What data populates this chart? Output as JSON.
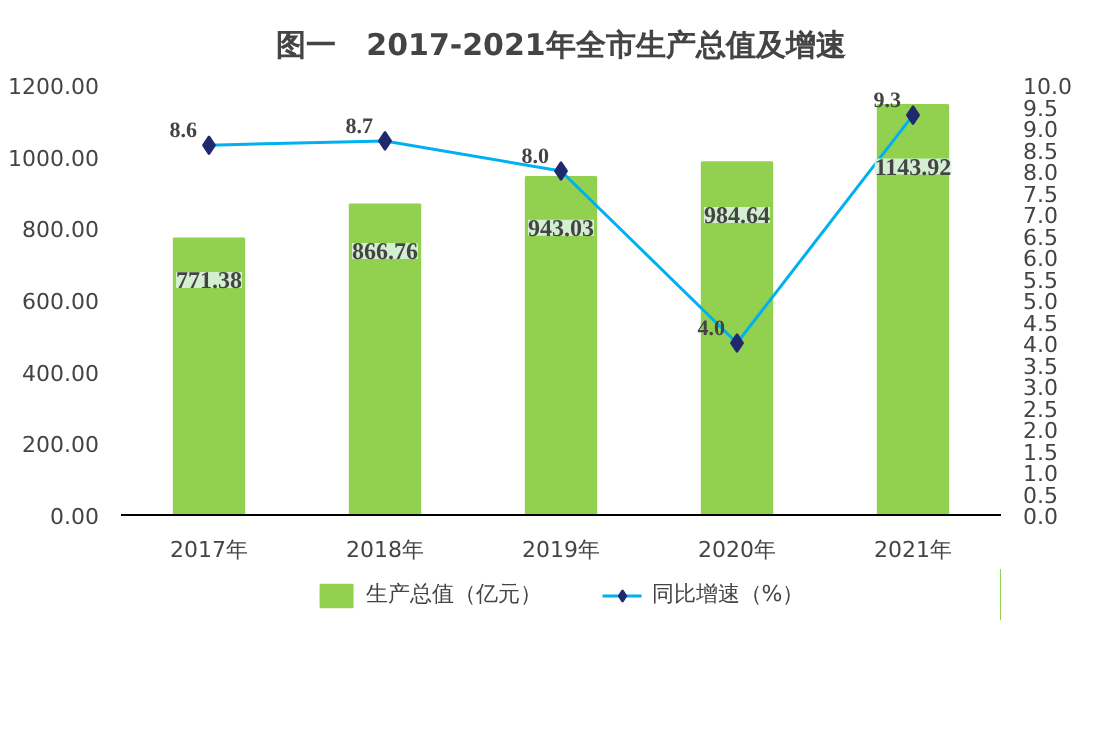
{
  "chart_data": {
    "type": "bar",
    "title": "图一　2017-2021年全市生产总值及增速",
    "categories": [
      "2017年",
      "2018年",
      "2019年",
      "2020年",
      "2021年"
    ],
    "series": [
      {
        "name": "生产总值（亿元）",
        "color": "#92d050",
        "values": [
          771.38,
          866.76,
          943.03,
          984.64,
          1143.92
        ]
      },
      {
        "name": "同比增速（%）",
        "type": "line",
        "axis": "y2",
        "color": "#00b0f0",
        "values": [
          8.6,
          8.7,
          8.0,
          4.0,
          9.3
        ],
        "value_labels": [
          "8.6",
          "8.7",
          "8.0",
          "4.0",
          "9.3"
        ]
      }
    ],
    "ylim": [
      0,
      1200
    ],
    "yticks": [
      {
        "value": 0,
        "label": "0.00"
      },
      {
        "value": 200,
        "label": "200.00"
      },
      {
        "value": 400,
        "label": "400.00"
      },
      {
        "value": 600,
        "label": "600.00"
      },
      {
        "value": 800,
        "label": "800.00"
      },
      {
        "value": 1000,
        "label": "1000.00"
      },
      {
        "value": 1200,
        "label": "1200.00"
      }
    ],
    "y2lim": [
      0,
      10
    ],
    "y2ticks": [
      {
        "value": 0,
        "label": "0.0"
      },
      {
        "value": 0.5,
        "label": "0.5"
      },
      {
        "value": 1,
        "label": "1.0"
      },
      {
        "value": 1.5,
        "label": "1.5"
      },
      {
        "value": 2,
        "label": "2.0"
      },
      {
        "value": 2.5,
        "label": "2.5"
      },
      {
        "value": 3,
        "label": "3.0"
      },
      {
        "value": 3.5,
        "label": "3.5"
      },
      {
        "value": 4,
        "label": "4.0"
      },
      {
        "value": 4.5,
        "label": "4.5"
      },
      {
        "value": 5,
        "label": "5.0"
      },
      {
        "value": 5.5,
        "label": "5.5"
      },
      {
        "value": 6,
        "label": "6.0"
      },
      {
        "value": 6.5,
        "label": "6.5"
      },
      {
        "value": 7,
        "label": "7.0"
      },
      {
        "value": 7.5,
        "label": "7.5"
      },
      {
        "value": 8,
        "label": "8.0"
      },
      {
        "value": 8.5,
        "label": "8.5"
      },
      {
        "value": 9,
        "label": "9.0"
      },
      {
        "value": 9.5,
        "label": "9.5"
      },
      {
        "value": 10,
        "label": "10.0"
      }
    ],
    "marker": "diamond",
    "data_labels": true,
    "legend": "bottom",
    "grid": false
  }
}
